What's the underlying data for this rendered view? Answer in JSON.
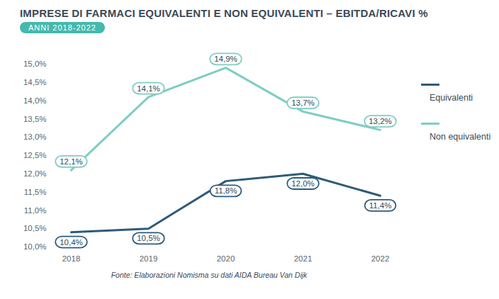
{
  "chart_data": {
    "type": "line",
    "title": "IMPRESE DI FARMACI EQUIVALENTI E NON EQUIVALENTI – EBITDA/RICAVI %",
    "subtitle": "ANNI 2018-2022",
    "caption": "Fonte: Elaborazioni Nomisma su dati AIDA Bureau Van Dijk",
    "categories": [
      "2018",
      "2019",
      "2020",
      "2021",
      "2022"
    ],
    "series": [
      {
        "name": "Equivalenti",
        "color": "#2d5b7a",
        "values": [
          10.4,
          10.5,
          11.8,
          12.0,
          11.4
        ],
        "value_labels": [
          "10,4%",
          "10,5%",
          "11,8%",
          "12,0%",
          "11,4%"
        ]
      },
      {
        "name": "Non equivalenti",
        "color": "#7fcdc3",
        "values": [
          12.1,
          14.1,
          14.9,
          13.7,
          13.2
        ],
        "value_labels": [
          "12,1%",
          "14,1%",
          "14,9%",
          "13,7%",
          "13,2%"
        ]
      }
    ],
    "ylim": [
      10,
      15
    ],
    "yticks": [
      {
        "value": 10,
        "label": "10,0%"
      },
      {
        "value": 10.5,
        "label": "10,5%"
      },
      {
        "value": 11,
        "label": "11,0%"
      },
      {
        "value": 11.5,
        "label": "11,5%"
      },
      {
        "value": 12,
        "label": "12,0%"
      },
      {
        "value": 12.5,
        "label": "12,5%"
      },
      {
        "value": 13,
        "label": "13,0%"
      },
      {
        "value": 13.5,
        "label": "13,5%"
      },
      {
        "value": 14,
        "label": "14,0%"
      },
      {
        "value": 14.5,
        "label": "14,5%"
      },
      {
        "value": 15,
        "label": "15,0%"
      }
    ],
    "grid": false,
    "legend": "right",
    "data_labels": true
  }
}
